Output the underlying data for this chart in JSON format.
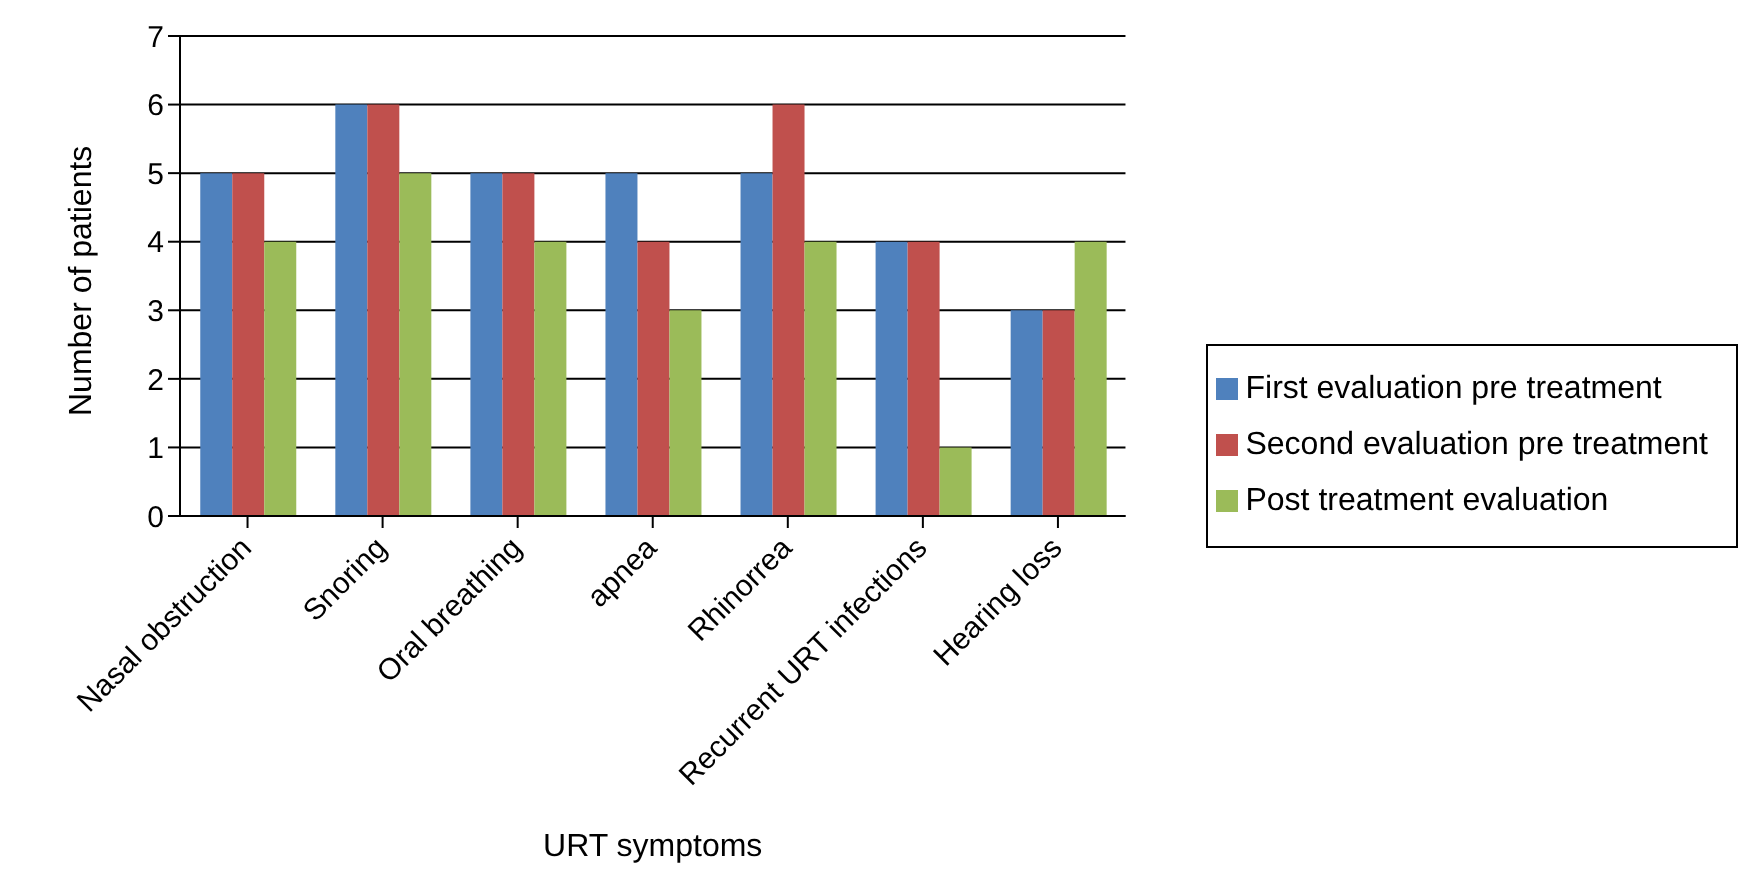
{
  "chart_data": {
    "type": "bar",
    "xlabel": "URT symptoms",
    "ylabel": "Number of patients",
    "categories": [
      "Nasal obstruction",
      "Snoring",
      "Oral breathing",
      "apnea",
      "Rhinorrea",
      "Recurrent URT infections",
      "Hearing loss"
    ],
    "series": [
      {
        "name": "First evaluation pre treatment",
        "color": "#4f81bd",
        "values": [
          5,
          6,
          5,
          5,
          5,
          4,
          3
        ]
      },
      {
        "name": "Second evaluation pre treatment",
        "color": "#c0504d",
        "values": [
          5,
          6,
          5,
          4,
          6,
          4,
          3
        ]
      },
      {
        "name": "Post treatment evaluation",
        "color": "#9bbb59",
        "values": [
          4,
          5,
          4,
          3,
          4,
          1,
          4
        ]
      }
    ],
    "ylim": [
      0,
      7
    ],
    "yticks": [
      0,
      1,
      2,
      3,
      4,
      5,
      6,
      7
    ],
    "grid": "y",
    "legend": "right"
  }
}
